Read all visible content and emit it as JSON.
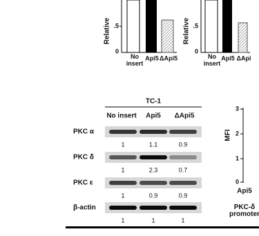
{
  "top_left": {
    "y_label": "Relative",
    "yticks": [
      ".5",
      "0"
    ],
    "categories": [
      "No insert",
      "Api5",
      "ΔApi5"
    ]
  },
  "top_right": {
    "y_label": "Relative",
    "yticks": [
      ".5",
      "0"
    ],
    "categories": [
      "No insert",
      "Api5",
      "ΔApi"
    ]
  },
  "blot": {
    "title": "TC-1",
    "columns": [
      "No insert",
      "Api5",
      "ΔApi5"
    ],
    "rows": [
      {
        "label": "PKC α",
        "values": [
          "1",
          "1.1",
          "0.9"
        ]
      },
      {
        "label": "PKC δ",
        "values": [
          "1",
          "2.3",
          "0.7"
        ]
      },
      {
        "label": "PKC ε",
        "values": [
          "1",
          "0.9",
          "0.9"
        ]
      },
      {
        "label": "β-actin",
        "values": [
          "1",
          "1",
          "1"
        ]
      }
    ]
  },
  "mfi": {
    "y_label": "MFI",
    "yticks": [
      "3",
      "2",
      "1",
      "0"
    ],
    "x_label": "Api5",
    "x_sublabel": "PKC-δ promoter"
  }
}
